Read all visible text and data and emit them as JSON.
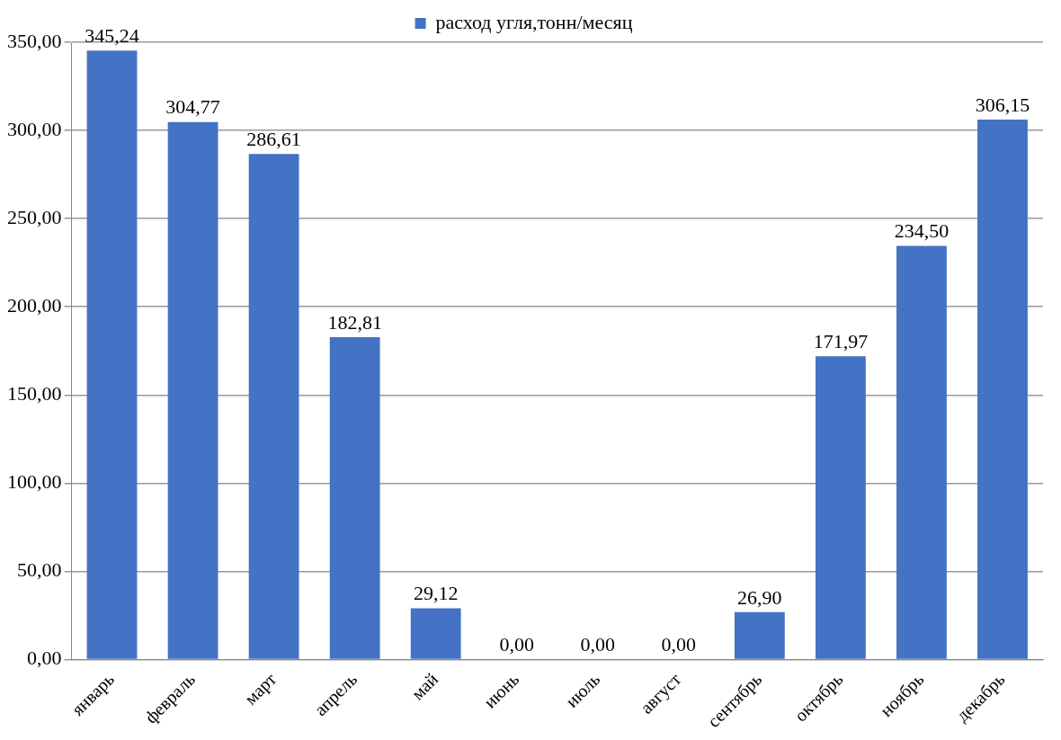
{
  "chart_data": {
    "type": "bar",
    "categories": [
      "январь",
      "февраль",
      "март",
      "апрель",
      "май",
      "июнь",
      "июль",
      "август",
      "сентябрь",
      "октябрь",
      "ноябрь",
      "декабрь"
    ],
    "series": [
      {
        "name": "расход угля,тонн/месяц",
        "color": "#4472c4",
        "values": [
          345.24,
          304.77,
          286.61,
          182.81,
          29.12,
          0,
          0,
          0,
          26.9,
          171.97,
          234.5,
          306.15
        ],
        "value_labels": [
          "345,24",
          "304,77",
          "286,61",
          "182,81",
          "29,12",
          "0,00",
          "0,00",
          "0,00",
          "26,90",
          "171,97",
          "234,50",
          "306,15"
        ]
      }
    ],
    "ylim": [
      0,
      350
    ],
    "yticks": [
      {
        "value": 0,
        "label": "0,00"
      },
      {
        "value": 50,
        "label": "50,00"
      },
      {
        "value": 100,
        "label": "100,00"
      },
      {
        "value": 150,
        "label": "150,00"
      },
      {
        "value": 200,
        "label": "200,00"
      },
      {
        "value": 250,
        "label": "250,00"
      },
      {
        "value": 300,
        "label": "300,00"
      },
      {
        "value": 350,
        "label": "350,00"
      }
    ],
    "grid": "y",
    "legend": "top"
  }
}
